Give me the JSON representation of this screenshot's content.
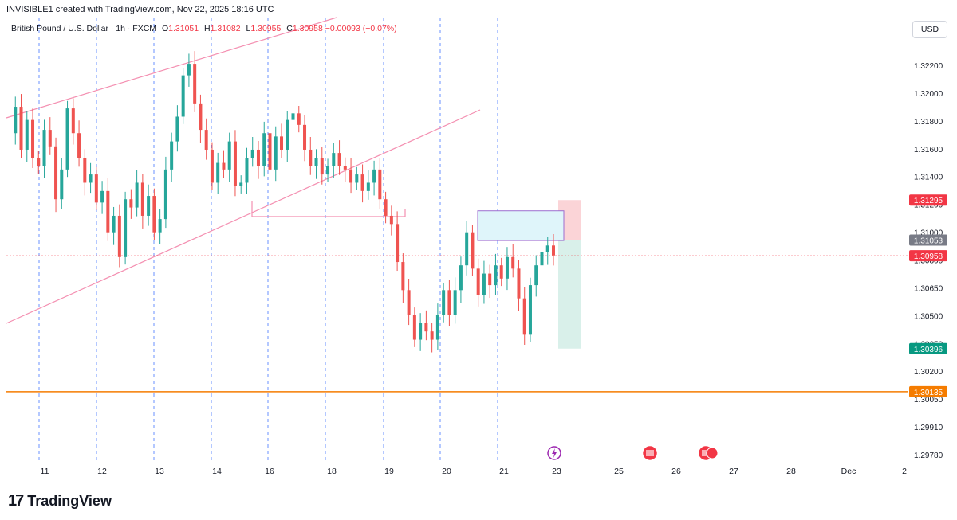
{
  "header": {
    "title": "INVISIBLE1 created with TradingView.com, Nov 22, 2025 18:16 UTC"
  },
  "legend": {
    "symbol": "British Pound / U.S. Dollar · 1h · FXCM",
    "o_label": "O",
    "o_value": "1.31051",
    "h_label": "H",
    "h_value": "1.31082",
    "l_label": "L",
    "l_value": "1.30955",
    "c_label": "C",
    "c_value": "1.30958",
    "change": "−0.00093 (−0.07%)"
  },
  "currency_button": "USD",
  "footer": {
    "logo_mark": "17",
    "logo_text": "TradingView"
  },
  "colors": {
    "up": "#26a69a",
    "down": "#ef5350",
    "channel": "#f48fb1",
    "session_line": "#2962ff",
    "support_line": "#f57c00",
    "current_price": "#f23645",
    "tp_zone": "#d9f0ea",
    "sl_zone": "#fbd4d7",
    "fvg_fill": "#dff5fa",
    "fvg_border": "#9c6ccf"
  },
  "chart_data": {
    "type": "candlestick",
    "title": "",
    "ylim": [
      1.2972,
      1.324
    ],
    "y_ticks": [
      "1.32200",
      "1.32000",
      "1.31800",
      "1.31600",
      "1.31400",
      "1.31200",
      "1.31000",
      "1.30800",
      "1.30650",
      "1.30500",
      "1.30350",
      "1.30200",
      "1.30050",
      "1.29910",
      "1.29780"
    ],
    "x_ticks": [
      "11",
      "12",
      "13",
      "14",
      "16",
      "18",
      "19",
      "20",
      "21",
      "23",
      "25",
      "26",
      "27",
      "28",
      "Dec",
      "2"
    ],
    "price_tags": [
      {
        "label": "1.31295",
        "value": 1.31295,
        "kind": "sl"
      },
      {
        "label": "1.31053",
        "value": 1.31053,
        "kind": "entry"
      },
      {
        "label": "1.30958",
        "value": 1.30958,
        "kind": "current"
      },
      {
        "label": "1.30396",
        "value": 1.30396,
        "kind": "tp"
      },
      {
        "label": "1.30135",
        "value": 1.30135,
        "kind": "support"
      }
    ],
    "support_level": 1.30135,
    "current_price": 1.30958,
    "position": {
      "entry": 1.31053,
      "stop": 1.31295,
      "target": 1.30396
    },
    "fvg_zone": {
      "top": 1.3123,
      "bottom": 1.3105
    },
    "events": [
      "lightning-event-icon",
      "us-flag-icon",
      "multi-flag-icon"
    ],
    "sessions": 9,
    "ohlc_path": [
      1.317,
      1.3186,
      1.316,
      1.3178,
      1.3155,
      1.315,
      1.3172,
      1.3162,
      1.313,
      1.3148,
      1.3185,
      1.317,
      1.3155,
      1.314,
      1.3145,
      1.3128,
      1.3135,
      1.311,
      1.312,
      1.3095,
      1.313,
      1.3125,
      1.314,
      1.312,
      1.3132,
      1.311,
      1.3118,
      1.3148,
      1.3165,
      1.318,
      1.3205,
      1.3212,
      1.3188,
      1.3172,
      1.316,
      1.314,
      1.3152,
      1.3148,
      1.3165,
      1.3138,
      1.314,
      1.3155,
      1.316,
      1.315,
      1.317,
      1.3148,
      1.3168,
      1.316,
      1.3178,
      1.3182,
      1.3175,
      1.316,
      1.315,
      1.3155,
      1.3145,
      1.315,
      1.3158,
      1.315,
      1.3148,
      1.314,
      1.3145,
      1.3135,
      1.314,
      1.3148,
      1.313,
      1.312,
      1.3115,
      1.3092,
      1.3075,
      1.306,
      1.3045,
      1.3055,
      1.305,
      1.3045,
      1.306,
      1.3075,
      1.306,
      1.3075,
      1.309,
      1.311,
      1.3088,
      1.3072,
      1.3085,
      1.3078,
      1.309,
      1.3082,
      1.3095,
      1.3088,
      1.307,
      1.3048,
      1.3078,
      1.309,
      1.3098,
      1.3102,
      1.3096
    ]
  }
}
